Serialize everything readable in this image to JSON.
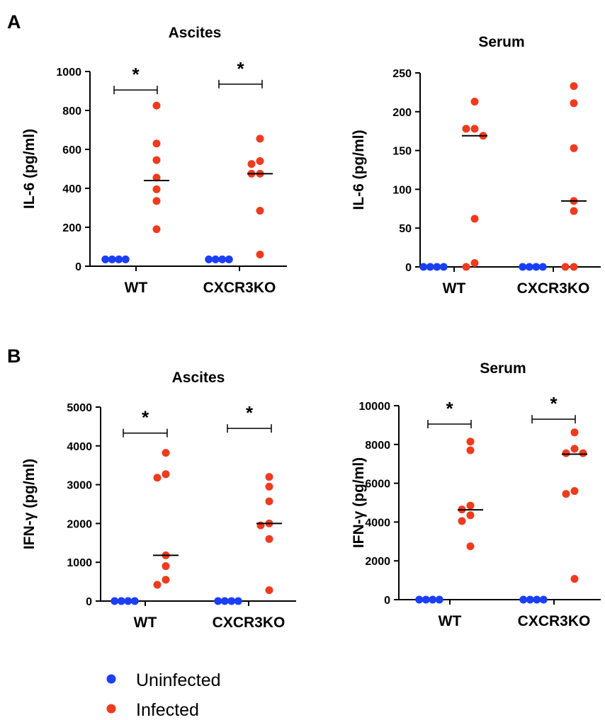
{
  "panels": {
    "A": "A",
    "B": "B"
  },
  "legend": {
    "uninfected": {
      "label": "Uninfected",
      "color": "#1a3ff5"
    },
    "infected": {
      "label": "Infected",
      "color": "#f03a1e"
    }
  },
  "chart_data": [
    {
      "id": "a-ascites",
      "type": "scatter",
      "panel": "A",
      "title": "Ascites",
      "ylabel": "IL-6 (pg/ml)",
      "ylim": [
        0,
        1000
      ],
      "yticks": [
        0,
        200,
        400,
        600,
        800,
        1000
      ],
      "categories": [
        "WT",
        "CXCR3KO"
      ],
      "groups": [
        {
          "category": "WT",
          "series": "Uninfected",
          "values": [
            35,
            35,
            35,
            35
          ],
          "median": null
        },
        {
          "category": "WT",
          "series": "Infected",
          "values": [
            825,
            630,
            545,
            455,
            395,
            335,
            190
          ],
          "median": 440
        },
        {
          "category": "CXCR3KO",
          "series": "Uninfected",
          "values": [
            35,
            35,
            35,
            35
          ],
          "median": null
        },
        {
          "category": "CXCR3KO",
          "series": "Infected",
          "values": [
            655,
            540,
            525,
            475,
            475,
            285,
            60
          ],
          "median": 475
        }
      ],
      "significance": [
        {
          "category": "WT",
          "label": "*",
          "level": 905
        },
        {
          "category": "CXCR3KO",
          "label": "*",
          "level": 935
        }
      ]
    },
    {
      "id": "a-serum",
      "type": "scatter",
      "panel": "A",
      "title": "Serum",
      "ylabel": "IL-6 (pg/ml)",
      "ylim": [
        0,
        250
      ],
      "yticks": [
        0,
        50,
        100,
        150,
        200,
        250
      ],
      "categories": [
        "WT",
        "CXCR3KO"
      ],
      "groups": [
        {
          "category": "WT",
          "series": "Uninfected",
          "values": [
            0,
            0,
            0,
            0
          ],
          "median": null
        },
        {
          "category": "WT",
          "series": "Infected",
          "values": [
            213,
            178,
            178,
            169,
            62,
            5,
            0
          ],
          "median": 169
        },
        {
          "category": "CXCR3KO",
          "series": "Uninfected",
          "values": [
            0,
            0,
            0,
            0
          ],
          "median": null
        },
        {
          "category": "CXCR3KO",
          "series": "Infected",
          "values": [
            233,
            211,
            153,
            85,
            72,
            0,
            0
          ],
          "median": 85
        }
      ],
      "significance": []
    },
    {
      "id": "b-ascites",
      "type": "scatter",
      "panel": "B",
      "title": "Ascites",
      "ylabel": "IFN-γ (pg/ml)",
      "ylim": [
        0,
        5000
      ],
      "yticks": [
        0,
        1000,
        2000,
        3000,
        4000,
        5000
      ],
      "categories": [
        "WT",
        "CXCR3KO"
      ],
      "groups": [
        {
          "category": "WT",
          "series": "Uninfected",
          "values": [
            0,
            0,
            0,
            0
          ],
          "median": null
        },
        {
          "category": "WT",
          "series": "Infected",
          "values": [
            3820,
            3270,
            3180,
            1180,
            900,
            550,
            420
          ],
          "median": 1180
        },
        {
          "category": "CXCR3KO",
          "series": "Uninfected",
          "values": [
            0,
            0,
            0,
            0
          ],
          "median": null
        },
        {
          "category": "CXCR3KO",
          "series": "Infected",
          "values": [
            3200,
            2950,
            2570,
            2000,
            1950,
            1600,
            280
          ],
          "median": 2000
        }
      ],
      "significance": [
        {
          "category": "WT",
          "label": "*",
          "level": 4330
        },
        {
          "category": "CXCR3KO",
          "label": "*",
          "level": 4450
        }
      ]
    },
    {
      "id": "b-serum",
      "type": "scatter",
      "panel": "B",
      "title": "Serum",
      "ylabel": "IFN-γ (pg/ml)",
      "ylim": [
        0,
        10000
      ],
      "yticks": [
        0,
        2000,
        4000,
        6000,
        8000,
        10000
      ],
      "categories": [
        "WT",
        "CXCR3KO"
      ],
      "groups": [
        {
          "category": "WT",
          "series": "Uninfected",
          "values": [
            0,
            0,
            0,
            0
          ],
          "median": null
        },
        {
          "category": "WT",
          "series": "Infected",
          "values": [
            8150,
            7700,
            4850,
            4650,
            4350,
            4050,
            2750
          ],
          "median": 4630
        },
        {
          "category": "CXCR3KO",
          "series": "Uninfected",
          "values": [
            0,
            0,
            0,
            0
          ],
          "median": null
        },
        {
          "category": "CXCR3KO",
          "series": "Infected",
          "values": [
            8620,
            7780,
            7550,
            7550,
            5600,
            5450,
            1070
          ],
          "median": 7500
        }
      ],
      "significance": [
        {
          "category": "WT",
          "label": "*",
          "level": 9050
        },
        {
          "category": "CXCR3KO",
          "label": "*",
          "level": 9300
        }
      ]
    }
  ]
}
